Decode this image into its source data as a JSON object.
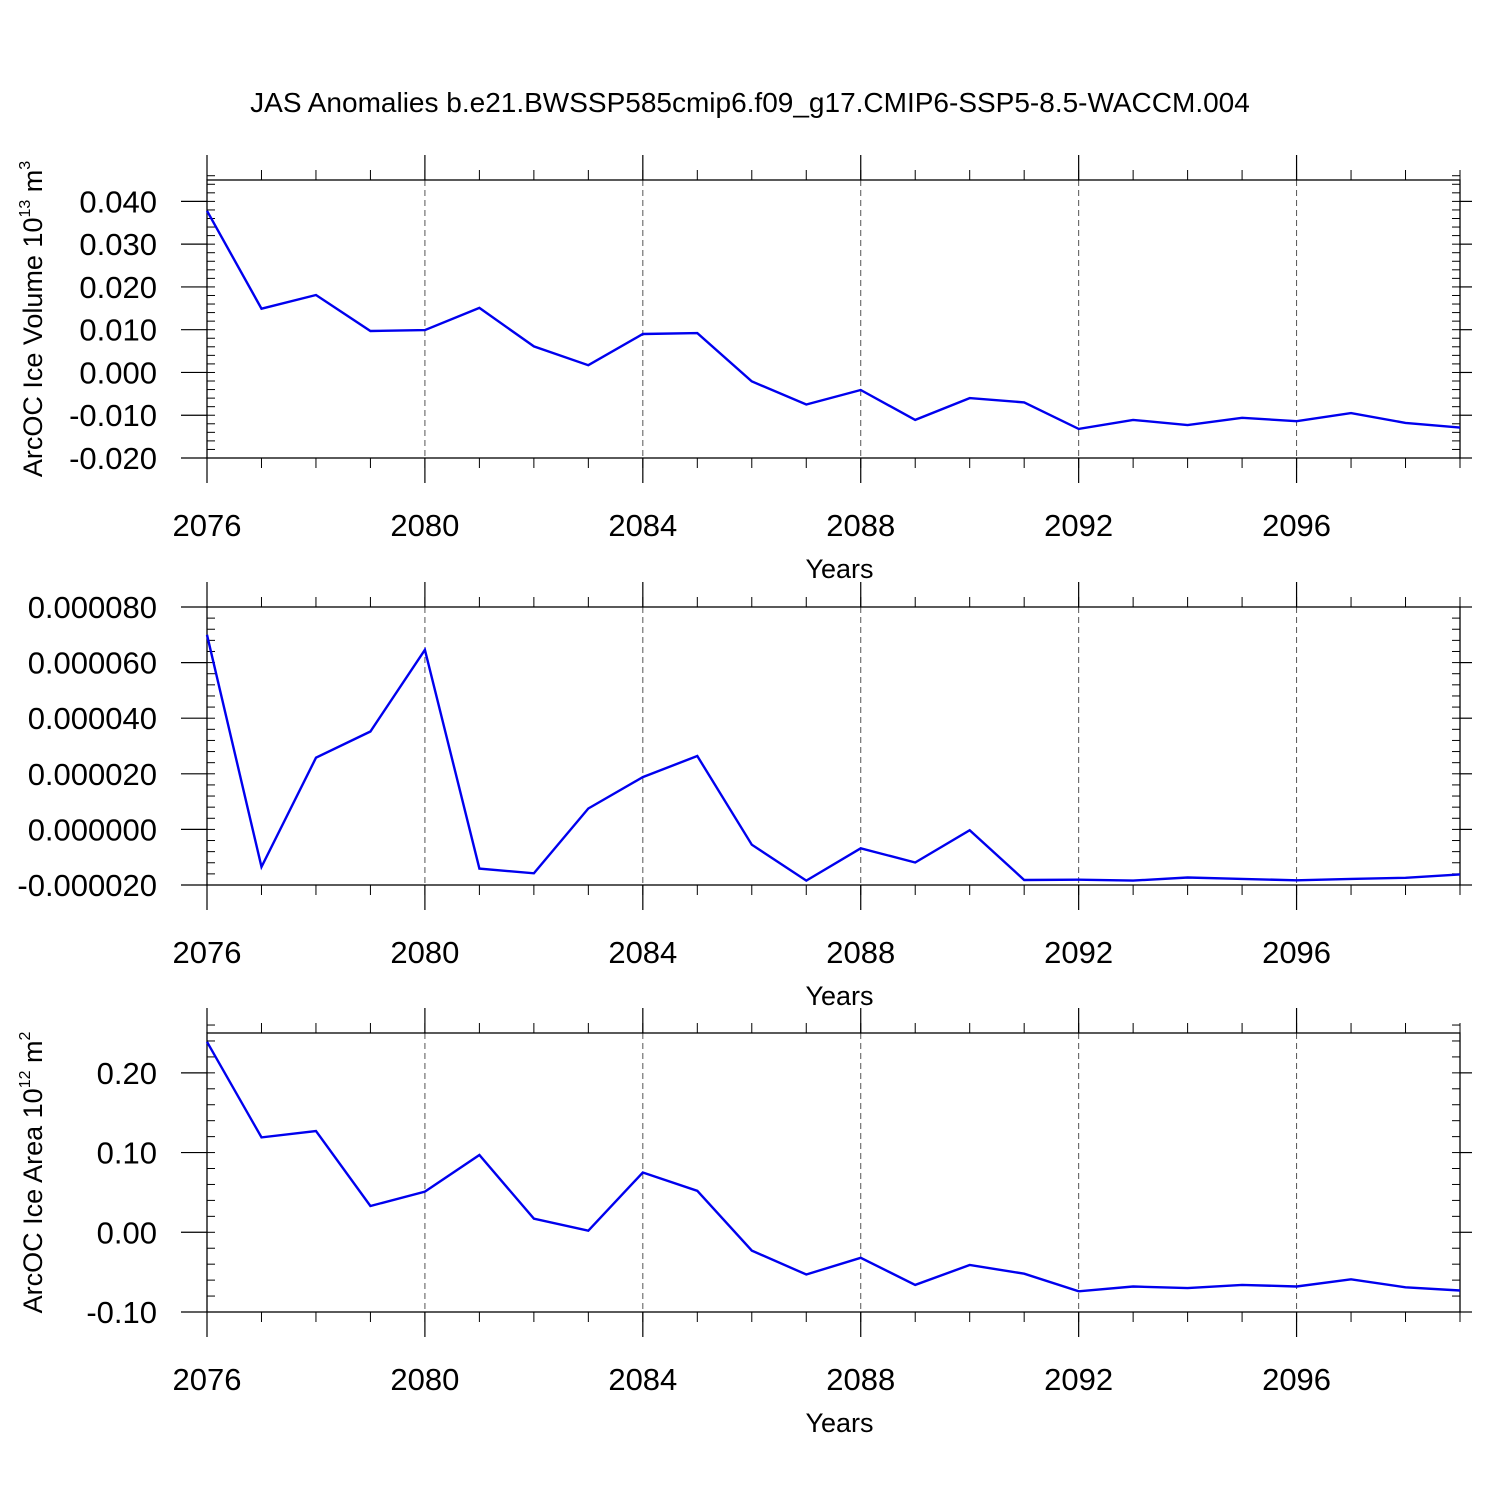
{
  "figure_title": "JAS Anomalies b.e21.BWSSP585cmip6.f09_g17.CMIP6-SSP5-8.5-WACCM.004",
  "line_color": "#0000ee",
  "chart_data": [
    {
      "type": "line",
      "title": "",
      "xlabel": "Years",
      "ylabel": {
        "prefix": "ArcOC Ice Volume 10",
        "exp": "13",
        "unit": " m",
        "unit_exp": "3"
      },
      "xlim": [
        2076,
        2099
      ],
      "ylim": [
        -0.02,
        0.045
      ],
      "x_ticks": [
        2076,
        2080,
        2084,
        2088,
        2092,
        2096
      ],
      "x_tick_labels": [
        "2076",
        "2080",
        "2084",
        "2088",
        "2092",
        "2096"
      ],
      "y_ticks": [
        -0.02,
        -0.01,
        0.0,
        0.01,
        0.02,
        0.03,
        0.04
      ],
      "y_tick_labels": [
        "-0.020",
        "-0.010",
        "0.000",
        "0.010",
        "0.020",
        "0.030",
        "0.040"
      ],
      "y_minor_step": 0.002,
      "series": [
        {
          "name": "ArcOC Ice Volume",
          "x": [
            2076,
            2077,
            2078,
            2079,
            2080,
            2081,
            2082,
            2083,
            2084,
            2085,
            2086,
            2087,
            2088,
            2089,
            2090,
            2091,
            2092,
            2093,
            2094,
            2095,
            2096,
            2097,
            2098,
            2099
          ],
          "values": [
            0.0378,
            0.0149,
            0.0181,
            0.0097,
            0.0099,
            0.0151,
            0.0061,
            0.0017,
            0.009,
            0.0092,
            -0.0021,
            -0.0075,
            -0.0041,
            -0.0111,
            -0.006,
            -0.007,
            -0.0132,
            -0.0111,
            -0.0123,
            -0.0106,
            -0.0114,
            -0.0095,
            -0.0118,
            -0.0129
          ]
        }
      ]
    },
    {
      "type": "line",
      "title": "",
      "xlabel": "Years",
      "ylabel": null,
      "xlim": [
        2076,
        2099
      ],
      "ylim": [
        -2e-05,
        8e-05
      ],
      "x_ticks": [
        2076,
        2080,
        2084,
        2088,
        2092,
        2096
      ],
      "x_tick_labels": [
        "2076",
        "2080",
        "2084",
        "2088",
        "2092",
        "2096"
      ],
      "y_ticks": [
        -2e-05,
        0.0,
        2e-05,
        4e-05,
        6e-05,
        8e-05
      ],
      "y_tick_labels": [
        "-0.000020",
        "0.000000",
        "0.000020",
        "0.000040",
        "0.000060",
        "0.000080"
      ],
      "y_minor_step": 4e-06,
      "series": [
        {
          "name": "series-2",
          "x": [
            2076,
            2077,
            2078,
            2079,
            2080,
            2081,
            2082,
            2083,
            2084,
            2085,
            2086,
            2087,
            2088,
            2089,
            2090,
            2091,
            2092,
            2093,
            2094,
            2095,
            2096,
            2097,
            2098,
            2099
          ],
          "values": [
            7e-05,
            -1.35e-05,
            2.58e-05,
            3.52e-05,
            6.46e-05,
            -1.41e-05,
            -1.58e-05,
            7.5e-06,
            1.88e-05,
            2.64e-05,
            -5.5e-06,
            -1.84e-05,
            -6.8e-06,
            -1.19e-05,
            -3e-07,
            -1.82e-05,
            -1.81e-05,
            -1.84e-05,
            -1.73e-05,
            -1.78e-05,
            -1.83e-05,
            -1.78e-05,
            -1.74e-05,
            -1.62e-05
          ]
        }
      ]
    },
    {
      "type": "line",
      "title": "",
      "xlabel": "Years",
      "ylabel": {
        "prefix": "ArcOC Ice Area 10",
        "exp": "12",
        "unit": " m",
        "unit_exp": "2"
      },
      "xlim": [
        2076,
        2099
      ],
      "ylim": [
        -0.1,
        0.25
      ],
      "x_ticks": [
        2076,
        2080,
        2084,
        2088,
        2092,
        2096
      ],
      "x_tick_labels": [
        "2076",
        "2080",
        "2084",
        "2088",
        "2092",
        "2096"
      ],
      "y_ticks": [
        -0.1,
        0.0,
        0.1,
        0.2
      ],
      "y_tick_labels": [
        "-0.10",
        "0.00",
        "0.10",
        "0.20"
      ],
      "y_minor_step": 0.02,
      "series": [
        {
          "name": "ArcOC Ice Area",
          "x": [
            2076,
            2077,
            2078,
            2079,
            2080,
            2081,
            2082,
            2083,
            2084,
            2085,
            2086,
            2087,
            2088,
            2089,
            2090,
            2091,
            2092,
            2093,
            2094,
            2095,
            2096,
            2097,
            2098,
            2099
          ],
          "values": [
            0.239,
            0.119,
            0.127,
            0.033,
            0.051,
            0.097,
            0.017,
            0.002,
            0.075,
            0.052,
            -0.023,
            -0.053,
            -0.032,
            -0.066,
            -0.041,
            -0.052,
            -0.074,
            -0.068,
            -0.07,
            -0.066,
            -0.068,
            -0.059,
            -0.069,
            -0.073
          ]
        }
      ]
    }
  ]
}
